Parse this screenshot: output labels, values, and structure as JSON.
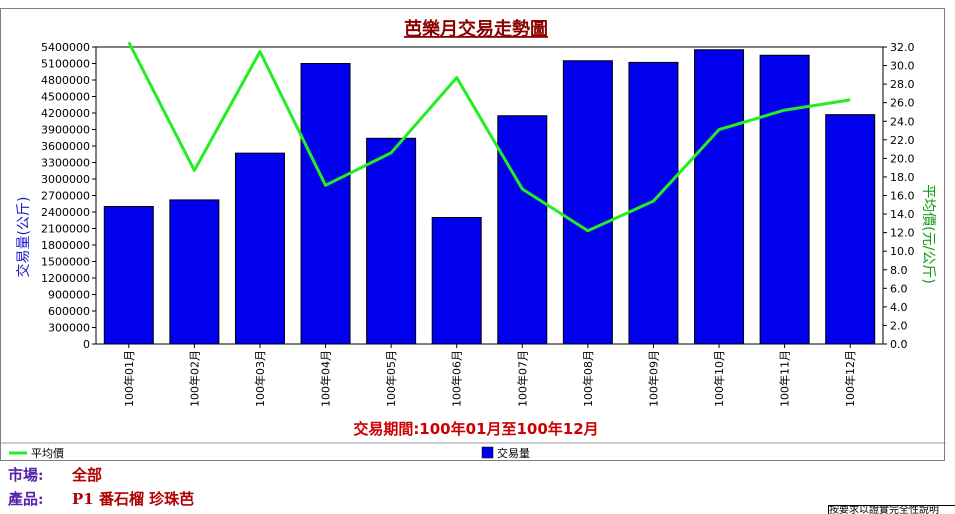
{
  "chart_data": {
    "type": "bar",
    "title": "芭樂月交易走勢圖",
    "period_label": "交易期間:100年01月至100年12月",
    "categories": [
      "100年01月",
      "100年02月",
      "100年03月",
      "100年04月",
      "100年05月",
      "100年06月",
      "100年07月",
      "100年08月",
      "100年09月",
      "100年10月",
      "100年11月",
      "100年12月"
    ],
    "series": [
      {
        "name": "交易量",
        "type": "bar",
        "axis": "left",
        "color": "#0000ee",
        "values": [
          2500000,
          2620000,
          3470000,
          5100000,
          3740000,
          2300000,
          4150000,
          5150000,
          5120000,
          5350000,
          5250000,
          4170000
        ]
      },
      {
        "name": "平均價",
        "type": "line",
        "axis": "right",
        "color": "#22ee22",
        "values": [
          32.5,
          18.7,
          31.5,
          17.1,
          20.6,
          28.7,
          16.7,
          12.2,
          15.4,
          23.1,
          25.2,
          26.3
        ]
      }
    ],
    "ylabel_left": "交易量(公斤)",
    "ylabel_right": "平均價(元/公斤)",
    "ylim_left": [
      0,
      5400000
    ],
    "ylim_right": [
      0,
      32
    ],
    "yticks_left": [
      "0",
      "300000",
      "600000",
      "900000",
      "1200000",
      "1500000",
      "1800000",
      "2100000",
      "2400000",
      "2700000",
      "3000000",
      "3300000",
      "3600000",
      "3900000",
      "4200000",
      "4500000",
      "4800000",
      "5100000",
      "5400000"
    ],
    "yticks_right": [
      "0.0",
      "2.0",
      "4.0",
      "6.0",
      "8.0",
      "10.0",
      "12.0",
      "14.0",
      "16.0",
      "18.0",
      "20.0",
      "22.0",
      "24.0",
      "26.0",
      "28.0",
      "30.0",
      "32.0"
    ],
    "grid": false,
    "legend_position": "bottom"
  },
  "info": {
    "market_label": "市場:",
    "market_value": "全部",
    "product_label": "產品:",
    "product_value": "P1 番石榴 珍珠芭"
  },
  "corner_text": "按要求以證實完全性說明"
}
